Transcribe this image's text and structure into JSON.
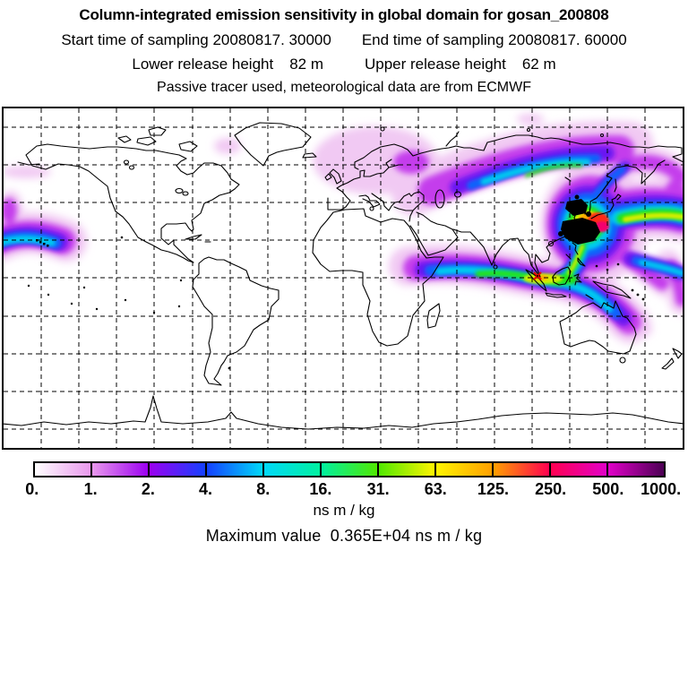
{
  "header": {
    "title": "Column-integrated emission sensitivity in global domain for gosan_200808",
    "sampling": {
      "start": "Start time of sampling 20080817. 30000",
      "end": "End time of sampling 20080817. 60000"
    },
    "release": {
      "lower_label": "Lower release height",
      "lower_value": "82 m",
      "upper_label": "Upper release height",
      "upper_value": "62 m"
    },
    "tracer_note": "Passive tracer used, meteorological data are from ECMWF"
  },
  "colorbar": {
    "tick_labels": [
      "0.",
      "1.",
      "2.",
      "4.",
      "8.",
      "16.",
      "31.",
      "63.",
      "125.",
      "250.",
      "500.",
      "1000."
    ],
    "levels": [
      0,
      1,
      2,
      4,
      8,
      16,
      31,
      63,
      125,
      250,
      500,
      1000
    ],
    "boundary_colors": [
      "#ffffff",
      "#e898ec",
      "#9c00f0",
      "#1440ff",
      "#00d8f8",
      "#00f0a0",
      "#50e800",
      "#fef400",
      "#ffa000",
      "#ff0050",
      "#e100c8",
      "#4c0054"
    ],
    "overflow_color": "#000000",
    "units_label": "ns m / kg"
  },
  "footer": {
    "max_value_label": "Maximum value  0.365E+04 ns m / kg"
  },
  "chart_data": {
    "type": "heatmap",
    "title": "Column-integrated emission sensitivity in global domain for gosan_200808",
    "subtitle_lines": [
      "Start time of sampling 20080817. 30000    End time of sampling 20080817. 60000",
      "Lower release height  82 m    Upper release height  62 m",
      "Passive tracer used, meteorological data are from ECMWF"
    ],
    "units": "ns m / kg",
    "max_value_text": "0.365E+04",
    "contour_levels": [
      0,
      1,
      2,
      4,
      8,
      16,
      31,
      63,
      125,
      250,
      500,
      1000
    ],
    "colorbar_tick_labels": [
      "0.",
      "1.",
      "2.",
      "4.",
      "8.",
      "16.",
      "31.",
      "63.",
      "125.",
      "250.",
      "500.",
      "1000."
    ],
    "colorbar_colors": [
      "#ffffff",
      "#e898ec",
      "#9c00f0",
      "#1440ff",
      "#00d8f8",
      "#00f0a0",
      "#50e800",
      "#fef400",
      "#ffa000",
      "#ff0050",
      "#e100c8",
      "#4c0054"
    ],
    "overflow_color": "#000000",
    "map": {
      "projection": "equirectangular",
      "lon_range": [
        -180,
        180
      ],
      "lat_range": [
        -90,
        90
      ],
      "graticule_spacing_deg": 20,
      "graticule_style": "dashed"
    },
    "features": [
      {
        "region": "Eastern China / Yellow Sea / Korea hotspot",
        "approx_lon": 122,
        "approx_lat": 33,
        "level": "> 1000 (overflow, rendered black)"
      },
      {
        "region": "Japan / Northwest Pacific",
        "approx_lon": 138,
        "approx_lat": 32,
        "level": "125-500"
      },
      {
        "region": "North Pacific zonal band toward date line",
        "approx_lon": 160,
        "approx_lat": 34,
        "level": "8-63"
      },
      {
        "region": "Arc across Siberia toward Scandinavia",
        "approx_lon": 90,
        "approx_lat": 62,
        "level": "2-31"
      },
      {
        "region": "Northern Europe / Barents Sea",
        "approx_lon": 25,
        "approx_lat": 68,
        "level": "0-2 (faint)"
      },
      {
        "region": "Equatorial Indian Ocean to Indonesia band",
        "approx_lon": 85,
        "approx_lat": 0,
        "level": "4-63"
      },
      {
        "region": "Maritime Continent / New Guinea fringe",
        "approx_lon": 140,
        "approx_lat": -8,
        "level": "1-8"
      },
      {
        "region": "Central North Pacific near Hawaii at west map edge",
        "approx_lon": -165,
        "approx_lat": 20,
        "level": "2-16"
      }
    ]
  }
}
